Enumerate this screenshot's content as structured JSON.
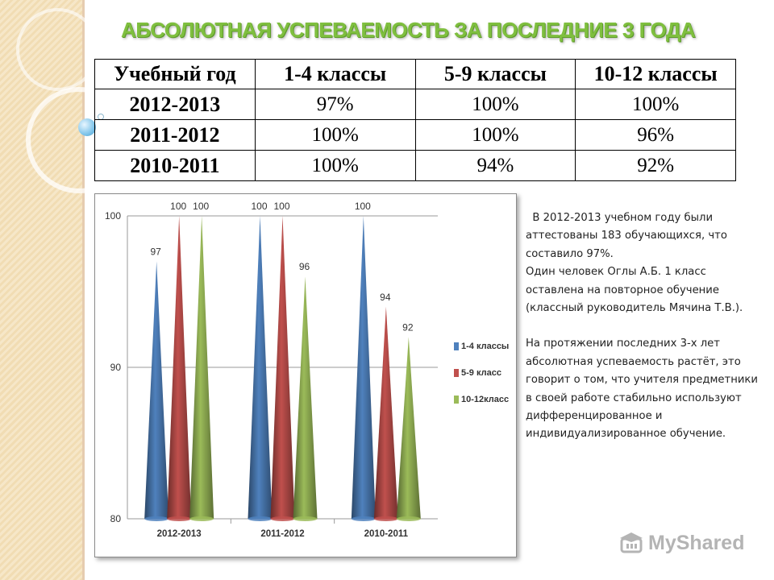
{
  "title": "АБСОЛЮТНАЯ УСПЕВАЕМОСТЬ  ЗА ПОСЛЕДНИЕ 3 ГОДА",
  "table": {
    "headers": [
      "Учебный год",
      "1-4 классы",
      "5-9 классы",
      "10-12 классы"
    ],
    "rows": [
      {
        "year": "2012-2013",
        "c1": "97%",
        "c2": "100%",
        "c3": "100%"
      },
      {
        "year": "2011-2012",
        "c1": "100%",
        "c2": "100%",
        "c3": "96%"
      },
      {
        "year": "2010-2011",
        "c1": "100%",
        "c2": "94%",
        "c3": "92%"
      }
    ]
  },
  "chart_data": {
    "type": "bar",
    "categories": [
      "2012-2013",
      "2011-2012",
      "2010-2011"
    ],
    "series": [
      {
        "name": "1-4 классы",
        "values": [
          97,
          100,
          100
        ],
        "color": "#4f81bd"
      },
      {
        "name": "5-9 класс",
        "values": [
          100,
          100,
          94
        ],
        "color": "#c0504d"
      },
      {
        "name": "10-12класс",
        "values": [
          100,
          96,
          92
        ],
        "color": "#9bbb59"
      }
    ],
    "ylim": [
      80,
      100
    ],
    "yticks": [
      "80",
      "90",
      "100"
    ],
    "grid": true,
    "legend_position": "right",
    "data_labels": true,
    "bar_shape": "cone"
  },
  "text": {
    "p1": "В 2012-2013 учебном году были аттестованы 183 обучающихся, что составило 97%.",
    "p2": "Один человек Оглы А.Б. 1 класс оставлена на повторное обучение (классный руководитель Мячина Т.В.).",
    "p3": "На протяжении последних 3-х лет абсолютная успеваемость растёт, это говорит о том, что учителя предметники в своей работе стабильно используют дифференцированное и индивидуализированное обучение."
  },
  "watermark": {
    "text": "MyShared",
    "icon": "mortarboard-icon"
  }
}
